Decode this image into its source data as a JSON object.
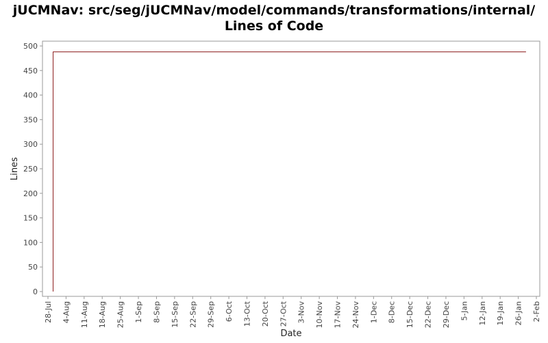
{
  "chart_data": {
    "type": "line",
    "title_line1": "jUCMNav: src/seg/jUCMNav/model/commands/transformations/internal/",
    "title_line2": "Lines of Code",
    "xlabel": "Date",
    "ylabel": "Lines",
    "ylim": [
      0,
      500
    ],
    "y_ticks": [
      0,
      50,
      100,
      150,
      200,
      250,
      300,
      350,
      400,
      450,
      500
    ],
    "x_ticks": [
      "28-Jul",
      "4-Aug",
      "11-Aug",
      "18-Aug",
      "25-Aug",
      "1-Sep",
      "8-Sep",
      "15-Sep",
      "22-Sep",
      "29-Sep",
      "6-Oct",
      "13-Oct",
      "20-Oct",
      "27-Oct",
      "3-Nov",
      "10-Nov",
      "17-Nov",
      "24-Nov",
      "1-Dec",
      "8-Dec",
      "15-Dec",
      "22-Dec",
      "29-Dec",
      "5-Jan",
      "12-Jan",
      "19-Jan",
      "26-Jan",
      "2-Feb"
    ],
    "xlim_days": [
      0,
      189
    ],
    "series": [
      {
        "color": "#8b1a1a",
        "x_days": [
          2,
          2,
          185
        ],
        "values": [
          0,
          488,
          488
        ]
      }
    ],
    "grid": false
  }
}
